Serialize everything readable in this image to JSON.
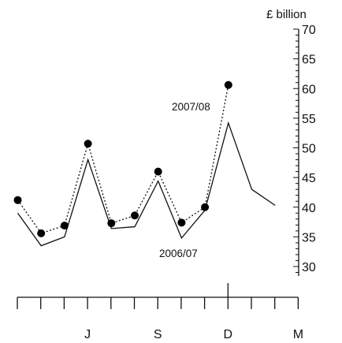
{
  "chart_data": {
    "type": "line",
    "ylabel": "£ billion",
    "ylim": [
      30,
      70
    ],
    "yticks": [
      30,
      35,
      40,
      45,
      50,
      55,
      60,
      65,
      70
    ],
    "x_tick_count": 12,
    "x_labels": [
      {
        "index": 3,
        "label": "J"
      },
      {
        "index": 6,
        "label": "S"
      },
      {
        "index": 9,
        "label": "D"
      },
      {
        "index": 12,
        "label": "M"
      }
    ],
    "series": [
      {
        "name": "2006/07",
        "style": "solid",
        "values": [
          39.0,
          33.5,
          35.0,
          48.0,
          36.4,
          36.7,
          44.4,
          34.8,
          39.5,
          54.2,
          43.0,
          40.3
        ]
      },
      {
        "name": "2007/08",
        "style": "dotted-with-markers",
        "values": [
          41.2,
          35.6,
          36.9,
          50.7,
          37.3,
          38.6,
          46.0,
          37.4,
          40.0,
          60.6
        ]
      }
    ]
  }
}
